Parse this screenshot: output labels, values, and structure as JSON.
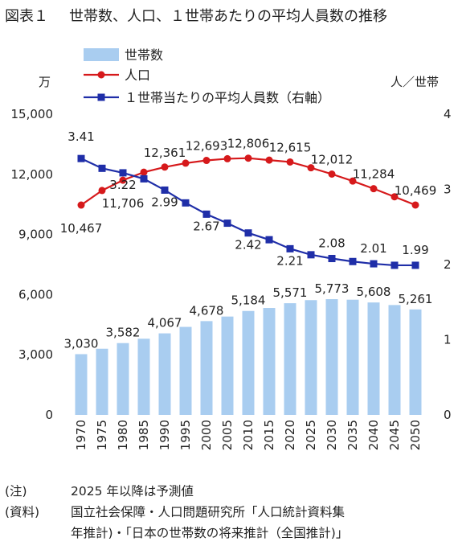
{
  "title": {
    "figure": "図表１",
    "text": "世帯数、人口、１世帯あたりの平均人員数の推移"
  },
  "chart_data": {
    "type": "bar+line",
    "categories": [
      "1970",
      "1975",
      "1980",
      "1985",
      "1990",
      "1995",
      "2000",
      "2005",
      "2010",
      "2015",
      "2020",
      "2025",
      "2030",
      "2035",
      "2040",
      "2045",
      "2050"
    ],
    "left_axis": {
      "unit": "万",
      "min": 0,
      "max": 15000,
      "ticks": [
        "0",
        "3,000",
        "6,000",
        "9,000",
        "12,000",
        "15,000"
      ],
      "tick_values": [
        0,
        3000,
        6000,
        9000,
        12000,
        15000
      ]
    },
    "right_axis": {
      "unit": "人／世帯",
      "min": 0,
      "max": 4,
      "ticks": [
        "0",
        "1",
        "2",
        "3",
        "4"
      ],
      "tick_values": [
        0,
        1,
        2,
        3,
        4
      ]
    },
    "series": [
      {
        "name": "世帯数",
        "type": "bar",
        "axis": "left",
        "color": "#a9cdf0",
        "values": [
          3030,
          3300,
          3582,
          3800,
          4067,
          4390,
          4678,
          4906,
          5184,
          5333,
          5571,
          5725,
          5773,
          5747,
          5608,
          5480,
          5261
        ],
        "labels": [
          "3,030",
          "",
          "3,582",
          "",
          "4,067",
          "",
          "4,678",
          "",
          "5,184",
          "",
          "5,571",
          "",
          "5,773",
          "",
          "5,608",
          "",
          "5,261"
        ]
      },
      {
        "name": "人口",
        "type": "line",
        "axis": "left",
        "color": "#d6191b",
        "values": [
          10467,
          11194,
          11706,
          12105,
          12361,
          12557,
          12693,
          12777,
          12806,
          12709,
          12615,
          12326,
          12012,
          11664,
          11284,
          10880,
          10469
        ],
        "labels": [
          "10,467",
          "",
          "11,706",
          "",
          "12,361",
          "",
          "12,693",
          "",
          "12,806",
          "",
          "12,615",
          "",
          "12,012",
          "",
          "11,284",
          "",
          "10,469"
        ]
      },
      {
        "name": "１世帯当たりの平均人員数（右軸）",
        "type": "line",
        "axis": "right",
        "color": "#1f2ea8",
        "values": [
          3.41,
          3.28,
          3.22,
          3.14,
          2.99,
          2.82,
          2.67,
          2.55,
          2.42,
          2.33,
          2.21,
          2.13,
          2.08,
          2.04,
          2.01,
          1.99,
          1.99
        ],
        "labels": [
          "3.41",
          "",
          "3.22",
          "",
          "2.99",
          "",
          "2.67",
          "",
          "2.42",
          "",
          "2.21",
          "",
          "2.08",
          "",
          "2.01",
          "",
          "1.99"
        ]
      }
    ]
  },
  "notes": {
    "note_tag": "(注)",
    "note_text": "2025 年以降は予測値",
    "source_tag": "(資料)",
    "source_line1": "国立社会保障・人口問題研究所「人口統計資料集",
    "source_line2": "年推計)・「日本の世帯数の将来推計（全国推計)」"
  }
}
